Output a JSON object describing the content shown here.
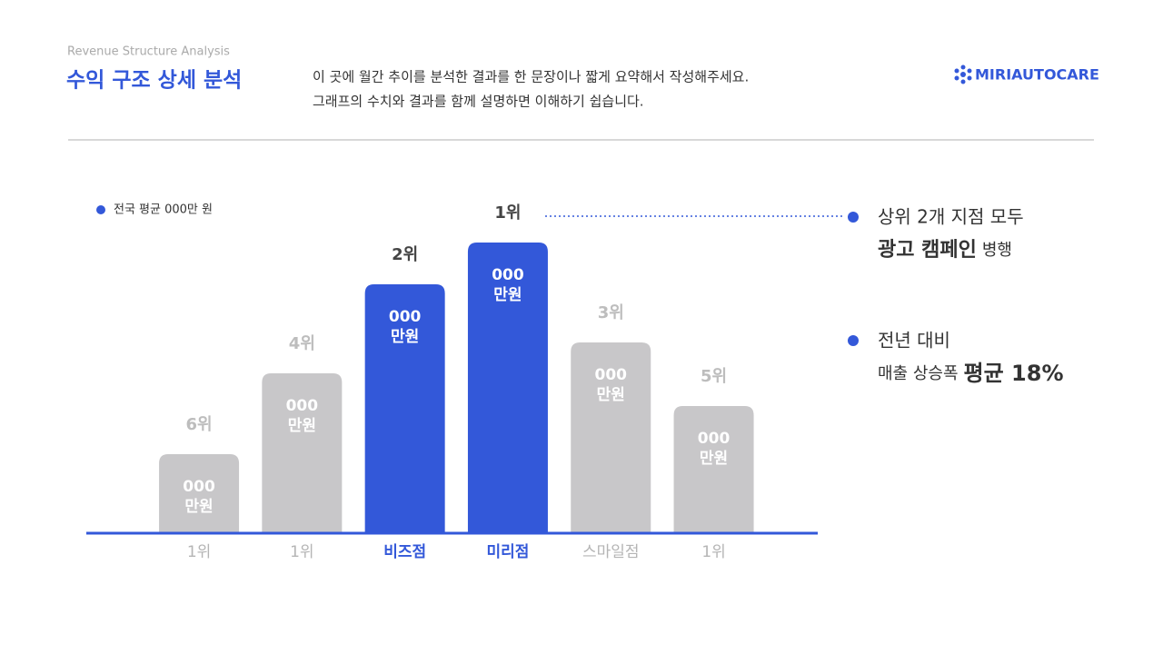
{
  "header": {
    "subtitle": "Revenue Structure Analysis",
    "title": "수익 구조 상세 분석",
    "description": [
      "이 곳에 월간 추이를 분석한 결과를 한 문장이나 짧게 요약해서 작성해주세요.",
      "그래프의 수치와 결과를 함께 설명하면 이해하기 쉽습니다."
    ],
    "logo": "MIRIAUTOCARE"
  },
  "chart_data": {
    "type": "bar",
    "legend": "전국 평균 000만 원",
    "categories": [
      "1위",
      "1위",
      "비즈점",
      "미리점",
      "스마일점",
      "1위"
    ],
    "ranks": [
      "6위",
      "4위",
      "2위",
      "1위",
      "3위",
      "5위"
    ],
    "values": [
      87,
      176,
      274,
      320,
      210,
      140
    ],
    "bar_texts": [
      [
        "000",
        "만원"
      ],
      [
        "000",
        "만원"
      ],
      [
        "000",
        "만원"
      ],
      [
        "000",
        "만원"
      ],
      [
        "000",
        "만원"
      ],
      [
        "000",
        "만원"
      ]
    ],
    "colors": [
      "#c8c7c9",
      "#c8c7c9",
      "#3358d9",
      "#3358d9",
      "#c8c7c9",
      "#c8c7c9"
    ]
  },
  "annotations": [
    {
      "line1": "상위 2개 지점 모두",
      "bold": "광고 캠페인",
      "normal": "병행"
    },
    {
      "line1": "전년 대비",
      "normal": "매출 상승폭",
      "bold": "평균 18%"
    }
  ]
}
